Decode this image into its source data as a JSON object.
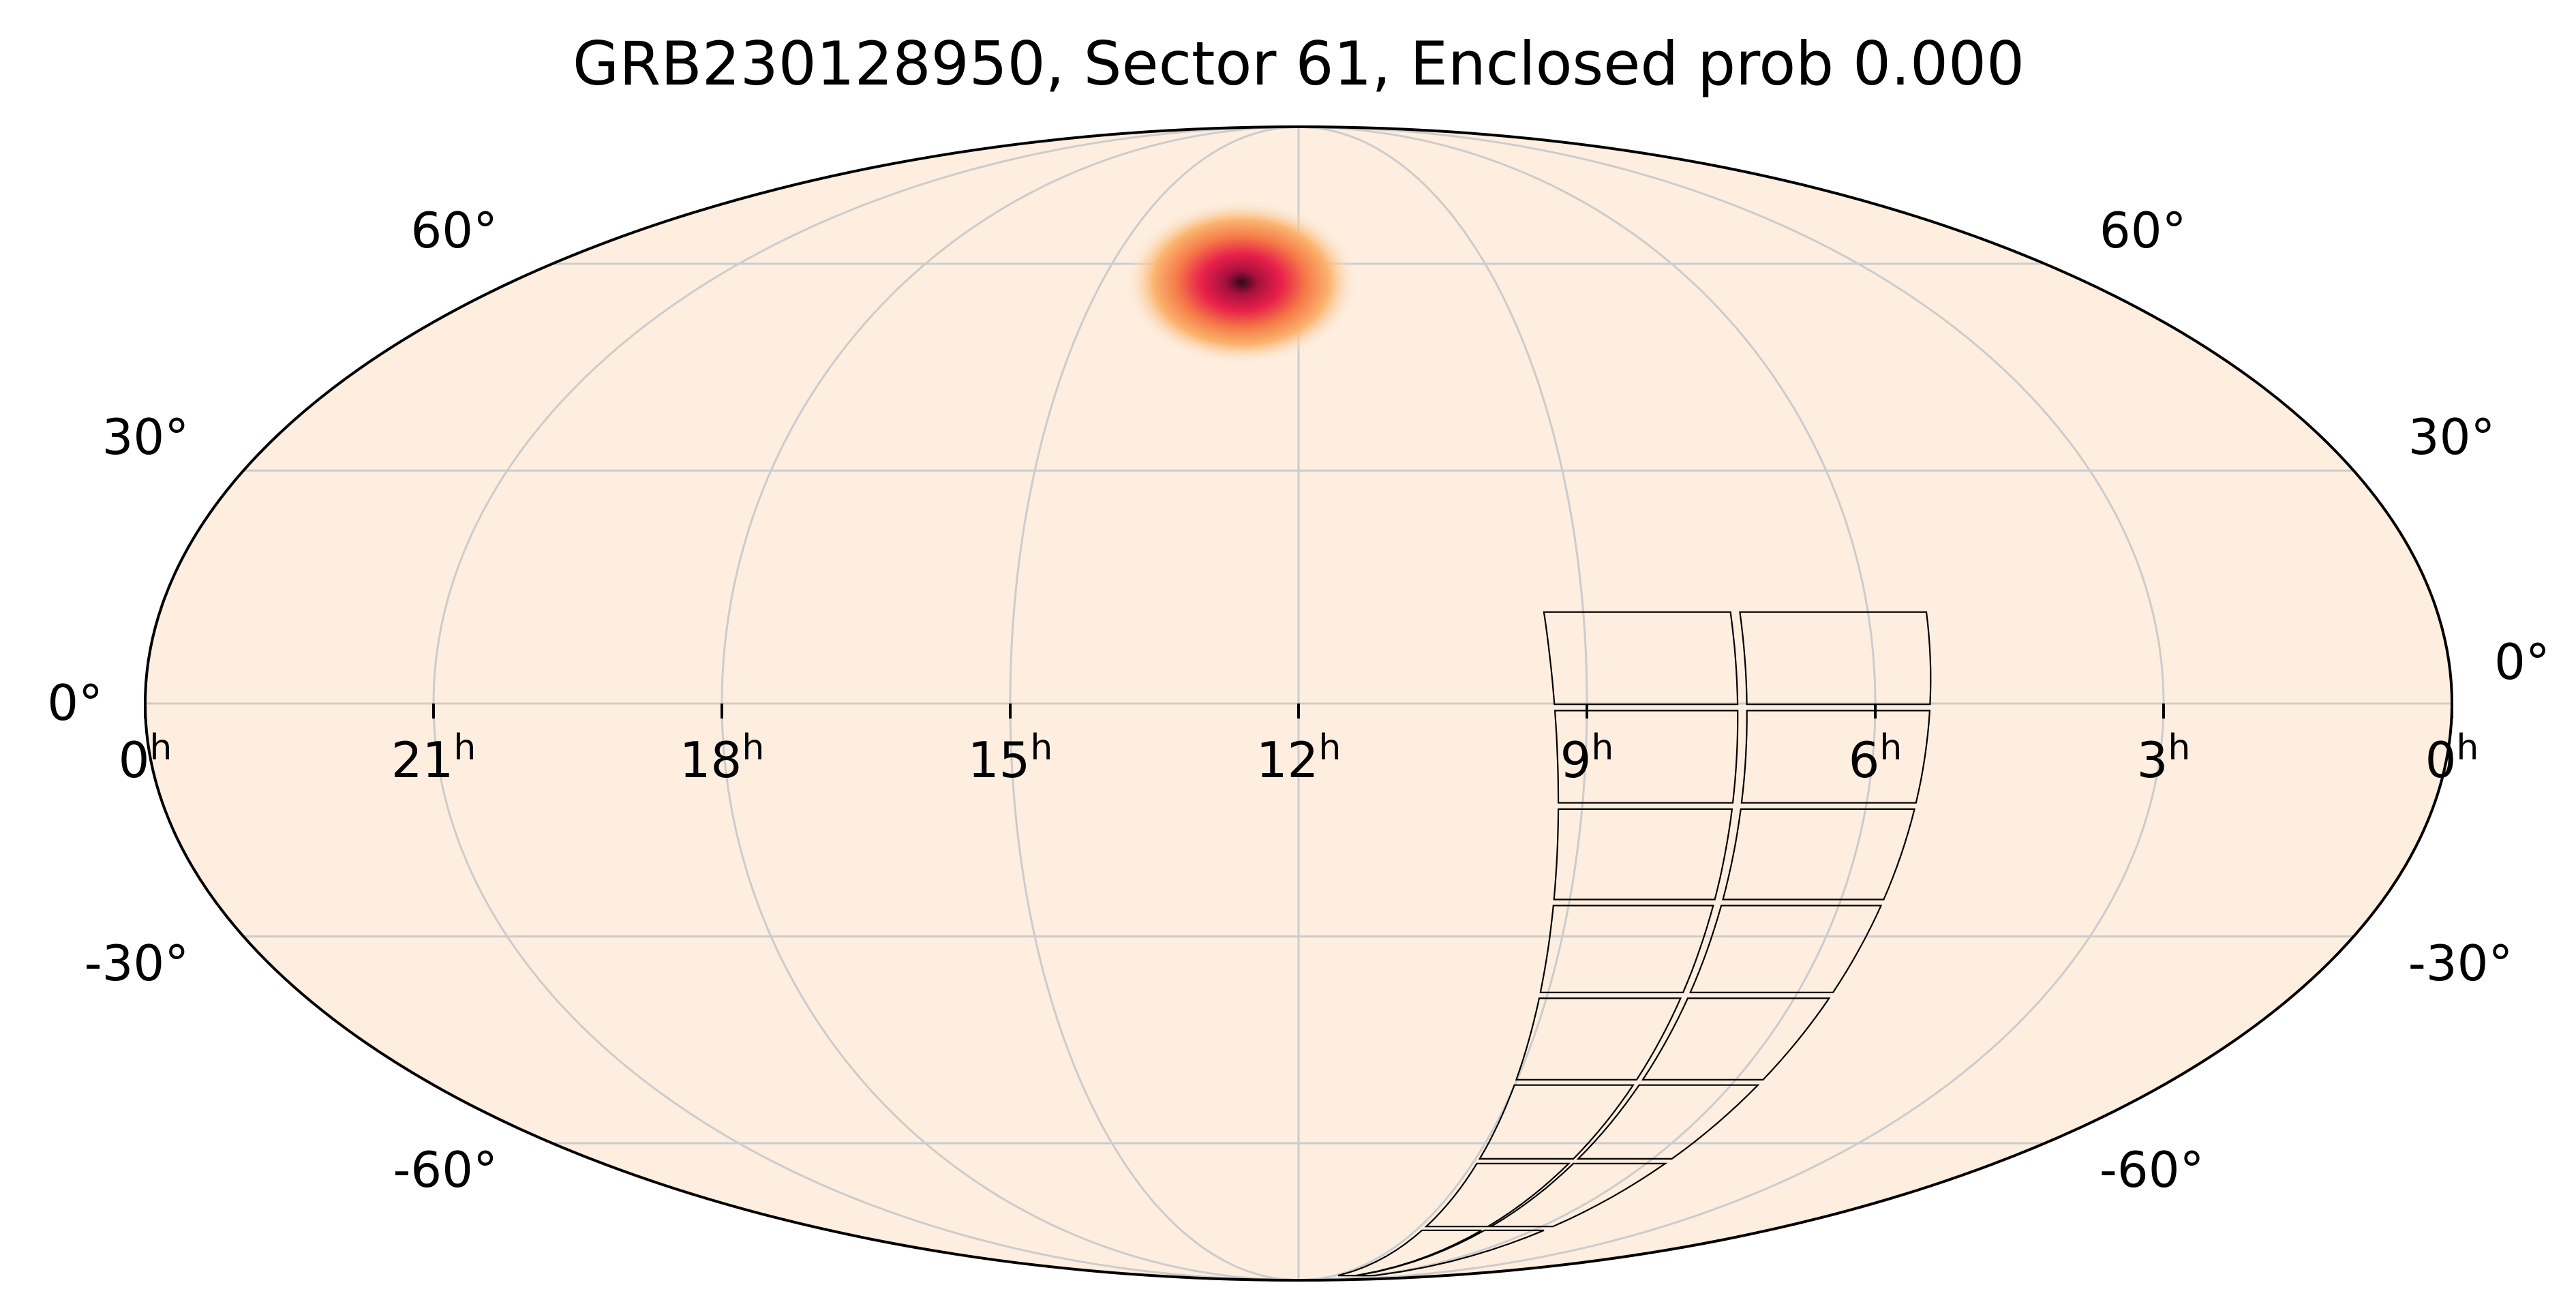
{
  "chart_data": {
    "type": "heatmap",
    "projection": "mollweide",
    "title": "GRB230128950, Sector 61, Enclosed prob 0.000",
    "grid": true,
    "ra_ticks": [
      {
        "label": "0",
        "sup": "h",
        "ra_deg": 360
      },
      {
        "label": "21",
        "sup": "h",
        "ra_deg": 315
      },
      {
        "label": "18",
        "sup": "h",
        "ra_deg": 270
      },
      {
        "label": "15",
        "sup": "h",
        "ra_deg": 225
      },
      {
        "label": "12",
        "sup": "h",
        "ra_deg": 180
      },
      {
        "label": "9",
        "sup": "h",
        "ra_deg": 135
      },
      {
        "label": "6",
        "sup": "h",
        "ra_deg": 90
      },
      {
        "label": "3",
        "sup": "h",
        "ra_deg": 45
      },
      {
        "label": "0",
        "sup": "h",
        "ra_deg": 0
      }
    ],
    "dec_ticks": [
      {
        "label": "60°",
        "dec_deg": 60
      },
      {
        "label": "30°",
        "dec_deg": 30
      },
      {
        "label": "0°",
        "dec_deg": 0
      },
      {
        "label": "-30°",
        "dec_deg": -30
      },
      {
        "label": "-60°",
        "dec_deg": -60
      }
    ],
    "probability_peak": {
      "ra_deg": 193,
      "dec_deg": 57,
      "sigma_deg": 3
    },
    "sector_footprint": {
      "sector": 61,
      "cameras": 4,
      "ccds_per_camera": 4,
      "approx_ra_range_deg": [
        80,
        142
      ],
      "approx_dec_range_deg": [
        -88,
        12
      ]
    },
    "colors": {
      "background": "#fdeee0",
      "outline": "#000000",
      "grid": "#cccccc",
      "colormap": [
        "#fdeee0",
        "#fbb46f",
        "#f57a47",
        "#e8204a",
        "#a8103e",
        "#2d0a1a"
      ]
    }
  }
}
